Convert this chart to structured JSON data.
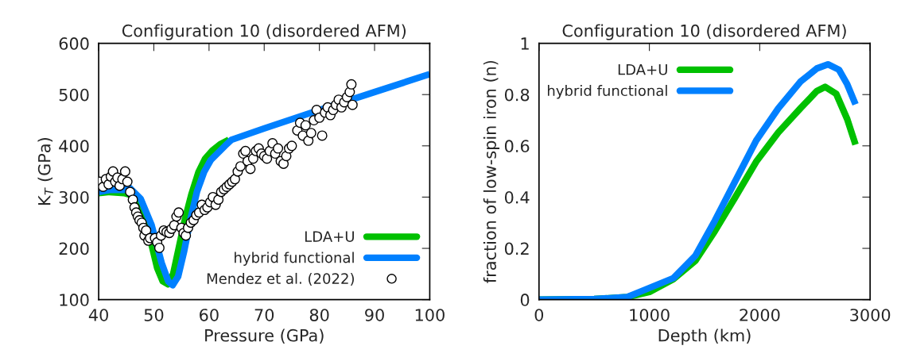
{
  "chart_data": [
    {
      "type": "line",
      "title": "Configuration 10 (disordered AFM)",
      "xlabel": "Pressure (GPa)",
      "ylabel": "K$_{T}$ (GPa)",
      "xlim": [
        40,
        100
      ],
      "xticks": [
        40,
        50,
        60,
        70,
        80,
        90,
        100
      ],
      "ylim": [
        100,
        600
      ],
      "yticks": [
        100,
        200,
        300,
        400,
        500,
        600
      ],
      "legend": "bottom right",
      "grid": false,
      "series": [
        {
          "name": "LDA+U",
          "color": "#00c000",
          "x": [
            40,
            42,
            44.6,
            45.6,
            47.6,
            49.1,
            50.6,
            51.6,
            52.6,
            53.5,
            54.5,
            55.6,
            56.8,
            58.1,
            59.3,
            60.6,
            62,
            63.6
          ],
          "values": [
            308,
            310,
            308,
            305,
            287,
            229,
            162,
            136,
            130,
            150,
            200,
            255,
            305,
            349,
            375,
            391,
            403,
            412
          ]
        },
        {
          "name": "hybrid functional",
          "color": "#0080ff",
          "x": [
            40,
            42,
            44.6,
            45.6,
            47.6,
            49.6,
            51.4,
            52.6,
            53.4,
            54.4,
            55.5,
            56.6,
            57.8,
            59.1,
            60.3,
            61.6,
            62.9,
            64.1,
            70,
            80,
            90,
            100
          ],
          "values": [
            310,
            314,
            314,
            318,
            297,
            245,
            172,
            136,
            128,
            145,
            195,
            255,
            310,
            349,
            372,
            386,
            400,
            412,
            434,
            470,
            505,
            540
          ]
        },
        {
          "name": "Mendez et al. (2022)",
          "color": "#000000",
          "type": "scatter",
          "marker": "circle",
          "x": [
            40.2,
            40.8,
            41.3,
            41.8,
            42.2,
            42.6,
            43.0,
            43.4,
            43.8,
            44.3,
            44.8,
            45.2,
            45.7,
            46.2,
            46.5,
            46.8,
            47.1,
            47.4,
            47.8,
            48.1,
            48.3,
            48.6,
            49.0,
            49.3,
            50.2,
            50.6,
            51.0,
            51.3,
            51.8,
            52.3,
            52.8,
            53.2,
            53.7,
            54.1,
            54.5,
            55.0,
            55.4,
            55.8,
            56.2,
            56.7,
            57.2,
            57.7,
            58.2,
            58.7,
            59.2,
            59.7,
            60.2,
            60.7,
            61.2,
            61.7,
            62.2,
            62.7,
            63.2,
            63.7,
            64.2,
            64.7,
            65.2,
            65.7,
            66.2,
            66.6,
            67.0,
            67.5,
            68.0,
            68.5,
            69.0,
            69.5,
            70.0,
            70.5,
            71.0,
            71.5,
            72.0,
            72.5,
            73.0,
            73.5,
            74.0,
            74.5,
            75.0,
            76.0,
            76.5,
            77.0,
            77.5,
            78.0,
            78.5,
            79.0,
            79.5,
            80.0,
            80.5,
            81.0,
            81.5,
            82.0,
            82.5,
            83.0,
            83.5,
            84.0,
            84.5,
            85.0,
            85.5,
            85.8,
            86.0
          ],
          "values": [
            330,
            320,
            335,
            325,
            340,
            350,
            330,
            338,
            322,
            335,
            350,
            330,
            310,
            295,
            280,
            270,
            262,
            255,
            250,
            240,
            225,
            235,
            215,
            220,
            220,
            212,
            201,
            225,
            235,
            232,
            230,
            238,
            245,
            262,
            270,
            240,
            230,
            225,
            240,
            250,
            255,
            265,
            270,
            285,
            275,
            280,
            290,
            300,
            285,
            295,
            310,
            315,
            320,
            325,
            330,
            335,
            350,
            360,
            385,
            390,
            370,
            355,
            375,
            390,
            395,
            385,
            380,
            375,
            390,
            405,
            385,
            395,
            370,
            365,
            380,
            395,
            400,
            430,
            445,
            420,
            440,
            410,
            425,
            450,
            470,
            455,
            420,
            465,
            475,
            460,
            470,
            480,
            490,
            475,
            485,
            495,
            505,
            520,
            480
          ]
        }
      ]
    },
    {
      "type": "line",
      "title": "Configuration 10 (disordered AFM)",
      "xlabel": "Depth (km)",
      "ylabel": "fraction of low-spin iron (n)",
      "xlim": [
        0,
        3000
      ],
      "xticks": [
        0,
        1000,
        2000,
        3000
      ],
      "ylim": [
        0,
        1
      ],
      "yticks": [
        0,
        0.2,
        0.4,
        0.6,
        0.8,
        1
      ],
      "legend": "top",
      "grid": false,
      "series": [
        {
          "name": "LDA+U",
          "color": "#00c000",
          "x": [
            0,
            500,
            800,
            1000,
            1218,
            1418,
            1593,
            1768,
            1968,
            2168,
            2368,
            2518,
            2593,
            2693,
            2793,
            2868
          ],
          "values": [
            0,
            0.002,
            0.01,
            0.03,
            0.08,
            0.152,
            0.267,
            0.392,
            0.538,
            0.652,
            0.746,
            0.814,
            0.83,
            0.803,
            0.704,
            0.605
          ]
        },
        {
          "name": "hybrid functional",
          "color": "#0080ff",
          "x": [
            0,
            500,
            800,
            968,
            1218,
            1418,
            1593,
            1768,
            1968,
            2168,
            2368,
            2518,
            2618,
            2718,
            2793,
            2868
          ],
          "values": [
            0,
            0.002,
            0.01,
            0.04,
            0.084,
            0.172,
            0.308,
            0.454,
            0.621,
            0.746,
            0.85,
            0.902,
            0.918,
            0.897,
            0.84,
            0.762
          ]
        }
      ]
    }
  ]
}
